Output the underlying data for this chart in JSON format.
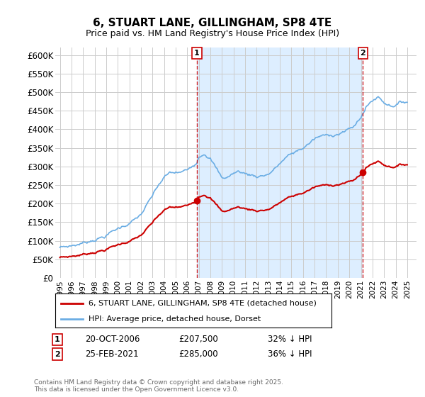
{
  "title": "6, STUART LANE, GILLINGHAM, SP8 4TE",
  "subtitle": "Price paid vs. HM Land Registry's House Price Index (HPI)",
  "ylim": [
    0,
    620000
  ],
  "yticks": [
    0,
    50000,
    100000,
    150000,
    200000,
    250000,
    300000,
    350000,
    400000,
    450000,
    500000,
    550000,
    600000
  ],
  "ytick_labels": [
    "£0",
    "£50K",
    "£100K",
    "£150K",
    "£200K",
    "£250K",
    "£300K",
    "£350K",
    "£400K",
    "£450K",
    "£500K",
    "£550K",
    "£600K"
  ],
  "hpi_color": "#6aade4",
  "hpi_fill_color": "#ddeeff",
  "price_color": "#cc0000",
  "vline_color": "#cc0000",
  "background_color": "#ffffff",
  "grid_color": "#cccccc",
  "sale1_date": "20-OCT-2006",
  "sale1_price": "£207,500",
  "sale1_hpi_pct": "32% ↓ HPI",
  "sale2_date": "25-FEB-2021",
  "sale2_price": "£285,000",
  "sale2_hpi_pct": "36% ↓ HPI",
  "legend_label_price": "6, STUART LANE, GILLINGHAM, SP8 4TE (detached house)",
  "legend_label_hpi": "HPI: Average price, detached house, Dorset",
  "footnote": "Contains HM Land Registry data © Crown copyright and database right 2025.\nThis data is licensed under the Open Government Licence v3.0.",
  "vline1_x": 2006.833,
  "vline2_x": 2021.167,
  "sale1_price_y": 207500,
  "sale2_price_y": 285000,
  "xlim_left": 1994.6,
  "xlim_right": 2025.8
}
